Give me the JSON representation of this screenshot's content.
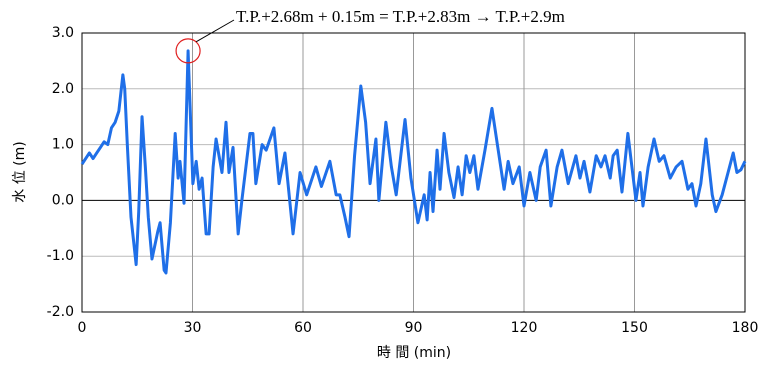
{
  "chart_data": {
    "type": "line",
    "annotation": "T.P.+2.68m + 0.15m = T.P.+2.83m → T.P.+2.9m",
    "x_label": "時 間 (min)",
    "y_label": "水 位 (m)",
    "xlim": [
      0,
      180
    ],
    "xticks": [
      0,
      30,
      60,
      90,
      120,
      150,
      180
    ],
    "ylim": [
      -2.0,
      3.0
    ],
    "yticks": [
      {
        "value": -2.0,
        "label": "-2.0"
      },
      {
        "value": -1.0,
        "label": "-1.0"
      },
      {
        "value": 0,
        "label": "0.0"
      },
      {
        "value": 1.0,
        "label": "1.0"
      },
      {
        "value": 2.0,
        "label": "2.0"
      },
      {
        "value": 3.0,
        "label": "3.0"
      }
    ],
    "grid": true,
    "series": [
      {
        "color": "#1f6fe8",
        "x": [
          0,
          1,
          2,
          3,
          4,
          5,
          6,
          7,
          8,
          9,
          10,
          11.1,
          11.6,
          12.3,
          13.3,
          14.7,
          15.4,
          16.3,
          17.2,
          18,
          19,
          20.6,
          21.2,
          22.3,
          22.8,
          24,
          25.3,
          26.1,
          26.6,
          27.7,
          28.8,
          30.1,
          31,
          31.8,
          32.6,
          33.7,
          34.5,
          35.6,
          36.4,
          37.2,
          38,
          39.1,
          39.9,
          41,
          42.4,
          43.4,
          44.5,
          45.6,
          46.4,
          47.2,
          48.9,
          50,
          52.1,
          53.5,
          55.1,
          57.3,
          59.2,
          61,
          63.5,
          65,
          67.3,
          69,
          70,
          71.4,
          72.5,
          74,
          75.7,
          77,
          78.2,
          79.8,
          80.6,
          82.5,
          84,
          85.3,
          87.7,
          89.3,
          91.2,
          92.9,
          93.7,
          94.5,
          95.3,
          96.4,
          97.2,
          98.3,
          99.6,
          101,
          102.1,
          103.2,
          104.3,
          105.3,
          106.4,
          107.5,
          109.4,
          111.3,
          113,
          114.6,
          115.7,
          117,
          118.7,
          120,
          121.6,
          123.3,
          124.4,
          126,
          127.3,
          129,
          130.3,
          132,
          134.1,
          135.2,
          136.3,
          137.9,
          139.6,
          140.9,
          142,
          143.4,
          144.2,
          145.3,
          146.6,
          148.2,
          149.3,
          150.4,
          151.5,
          152.3,
          153.7,
          155.3,
          156.7,
          158,
          159.7,
          161.3,
          162.9,
          164.5,
          165.6,
          166.7,
          168,
          169.4,
          171.1,
          172.1,
          173.8,
          175.4,
          176.8,
          177.8,
          178.9,
          180
        ],
        "values": [
          0.65,
          0.75,
          0.85,
          0.75,
          0.85,
          0.95,
          1.05,
          1.0,
          1.3,
          1.4,
          1.6,
          2.25,
          2.0,
          1.0,
          -0.3,
          -1.15,
          -0.2,
          1.5,
          0.6,
          -0.3,
          -1.05,
          -0.55,
          -0.4,
          -1.25,
          -1.3,
          -0.4,
          1.2,
          0.4,
          0.7,
          -0.05,
          2.68,
          0.3,
          0.7,
          0.2,
          0.4,
          -0.6,
          -0.6,
          0.6,
          1.1,
          0.8,
          0.5,
          1.4,
          0.5,
          0.95,
          -0.6,
          0.0,
          0.6,
          1.2,
          1.2,
          0.3,
          1.0,
          0.9,
          1.3,
          0.3,
          0.85,
          -0.6,
          0.5,
          0.1,
          0.6,
          0.25,
          0.7,
          0.1,
          0.1,
          -0.3,
          -0.65,
          0.8,
          2.05,
          1.4,
          0.3,
          1.1,
          0.0,
          1.4,
          0.6,
          0.1,
          1.45,
          0.4,
          -0.4,
          0.1,
          -0.35,
          0.5,
          -0.2,
          0.9,
          0.2,
          1.2,
          0.5,
          0.05,
          0.6,
          0.1,
          0.8,
          0.5,
          0.8,
          0.2,
          0.9,
          1.65,
          0.9,
          0.2,
          0.7,
          0.3,
          0.6,
          -0.1,
          0.5,
          0.0,
          0.6,
          0.9,
          -0.1,
          0.6,
          0.9,
          0.3,
          0.8,
          0.4,
          0.7,
          0.15,
          0.8,
          0.6,
          0.8,
          0.4,
          0.8,
          0.9,
          0.15,
          1.2,
          0.6,
          0.0,
          0.5,
          -0.1,
          0.6,
          1.1,
          0.7,
          0.8,
          0.4,
          0.6,
          0.7,
          0.2,
          0.3,
          -0.1,
          0.3,
          1.1,
          0.1,
          -0.2,
          0.1,
          0.5,
          0.85,
          0.5,
          0.55,
          0.7
        ]
      }
    ]
  }
}
